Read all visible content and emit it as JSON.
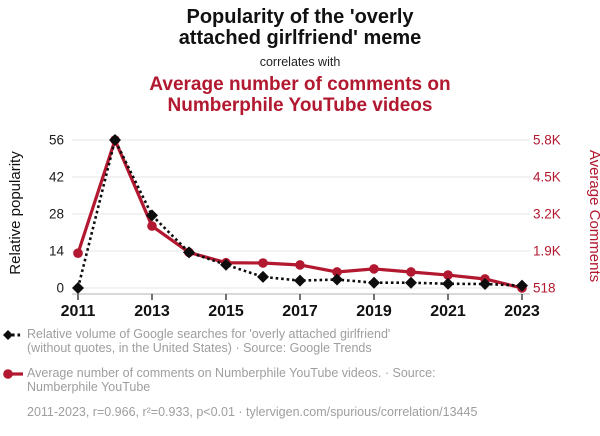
{
  "header": {
    "title_lines": [
      "Popularity of the 'overly",
      "attached girlfriend' meme"
    ],
    "connector": "correlates with",
    "subtitle_lines": [
      "Average number of comments on",
      "Numberphile YouTube videos"
    ]
  },
  "colors": {
    "accent_red": "#b2182f",
    "series_black": "#0d0d0d",
    "legend_gray": "#9e9e9e",
    "gridline": "#e6e6e6",
    "axis_line": "#b0b0b0",
    "tick_mark": "#444444"
  },
  "chart_data": {
    "type": "line",
    "x": [
      2011,
      2012,
      2013,
      2014,
      2015,
      2016,
      2017,
      2018,
      2019,
      2020,
      2021,
      2022,
      2023
    ],
    "x_ticks": [
      2011,
      2013,
      2015,
      2017,
      2019,
      2021,
      2023
    ],
    "left_axis": {
      "label": "Relative popularity",
      "ticks": [
        0,
        14,
        28,
        42,
        56
      ],
      "range": [
        0,
        56
      ]
    },
    "right_axis": {
      "label": "Average Comments",
      "tick_labels": [
        "518",
        "1.9K",
        "3.2K",
        "4.5K",
        "5.8K"
      ],
      "range": [
        518,
        5800
      ]
    },
    "grid": true,
    "legend_position": "below",
    "series": [
      {
        "id": "google-trends",
        "name": "Relative volume of Google searches for 'overly attached girlfriend'",
        "axis": "left",
        "style": "dashed",
        "marker": "diamond",
        "color": "#0d0d0d",
        "values": [
          0,
          56,
          27.5,
          13.5,
          8.8,
          4.2,
          2.8,
          3.2,
          2.0,
          2.0,
          1.6,
          1.5,
          0.9
        ]
      },
      {
        "id": "numberphile-comments",
        "name": "Average number of comments on Numberphile YouTube videos",
        "axis": "right",
        "style": "solid",
        "marker": "circle",
        "color": "#b2182f",
        "values": [
          1760,
          5800,
          2730,
          1790,
          1420,
          1410,
          1340,
          1090,
          1200,
          1090,
          980,
          840,
          518
        ]
      }
    ]
  },
  "legend": {
    "entries": [
      {
        "icon": "black-diamond-dashed",
        "lines": [
          "Relative volume of Google searches for 'overly attached girlfriend'",
          "(without quotes, in the United States) · Source: Google Trends"
        ]
      },
      {
        "icon": "red-circle-solid",
        "lines": [
          "Average number of comments on Numberphile YouTube videos. · Source:",
          "Numberphile YouTube"
        ]
      }
    ]
  },
  "footer": {
    "text": "2011-2023, r=0.966, r²=0.933, p<0.01 · tylervigen.com/spurious/correlation/13445"
  }
}
